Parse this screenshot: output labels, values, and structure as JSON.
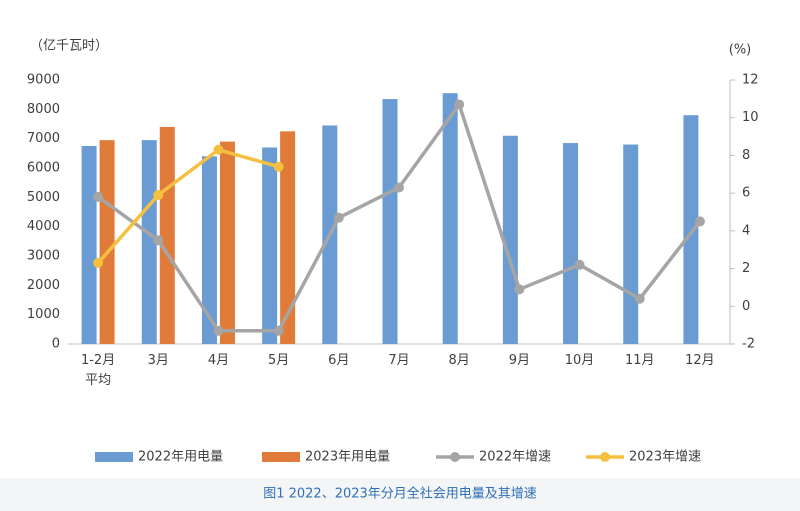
{
  "chart_data": {
    "type": "bar",
    "y_label": "（亿千瓦时）",
    "y2_label": "(%)",
    "caption": "图1 2022、2023年分月全社会用电量及其增速",
    "categories": [
      "1-2月\n平均",
      "3月",
      "4月",
      "5月",
      "6月",
      "7月",
      "8月",
      "9月",
      "10月",
      "11月",
      "12月"
    ],
    "series": [
      {
        "name": "2022年用电量",
        "type": "bar",
        "color": "#6a9bd3",
        "values": [
          6750,
          6950,
          6400,
          6700,
          7450,
          8350,
          8550,
          7100,
          6850,
          6800,
          7800
        ]
      },
      {
        "name": "2023年用电量",
        "type": "bar",
        "color": "#e07b39",
        "values": [
          6950,
          7400,
          6900,
          7250,
          null,
          null,
          null,
          null,
          null,
          null,
          null
        ]
      },
      {
        "name": "2022年增速",
        "type": "line",
        "axis": "y2",
        "color": "#a5a5a5",
        "values": [
          5.8,
          3.5,
          -1.3,
          -1.3,
          4.7,
          6.3,
          10.7,
          0.9,
          2.2,
          0.4,
          4.5
        ]
      },
      {
        "name": "2023年增速",
        "type": "line",
        "axis": "y2",
        "color": "#f5c040",
        "values": [
          2.3,
          5.9,
          8.3,
          7.4,
          null,
          null,
          null,
          null,
          null,
          null,
          null
        ]
      }
    ],
    "ylim": [
      0,
      9000
    ],
    "yticks": [
      0,
      1000,
      2000,
      3000,
      4000,
      5000,
      6000,
      7000,
      8000,
      9000
    ],
    "y2lim": [
      -2,
      12
    ],
    "y2ticks": [
      -2,
      0,
      2,
      4,
      6,
      8,
      10,
      12
    ],
    "grid": false,
    "legend": "bottom"
  }
}
